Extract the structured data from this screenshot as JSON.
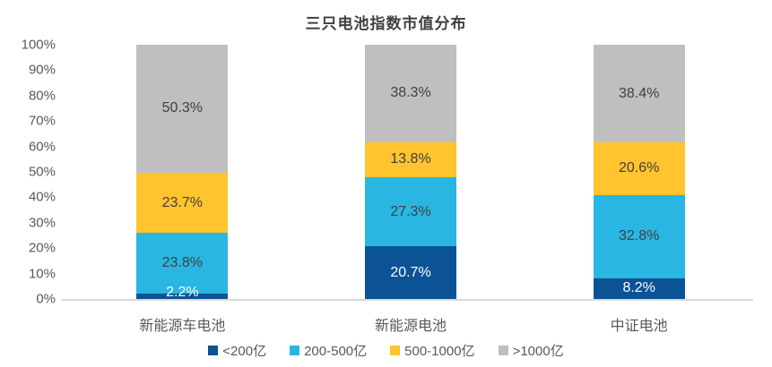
{
  "title": "三只电池指数市值分布",
  "chart_data": {
    "type": "bar",
    "stacked": true,
    "title": "三只电池指数市值分布",
    "categories": [
      "新能源车电池",
      "新能源电池",
      "中证电池"
    ],
    "series": [
      {
        "name": "<200亿",
        "color": "#0B5394",
        "label_color": "#FFFFFF",
        "values": [
          2.2,
          20.7,
          8.2
        ]
      },
      {
        "name": "200-500亿",
        "color": "#29B6E2",
        "label_color": "#404040",
        "values": [
          23.8,
          27.3,
          32.8
        ]
      },
      {
        "name": "500-1000亿",
        "color": "#FFC42E",
        "label_color": "#404040",
        "values": [
          23.7,
          13.8,
          20.6
        ]
      },
      {
        "name": ">1000亿",
        "color": "#BFBFBF",
        "label_color": "#404040",
        "values": [
          50.3,
          38.3,
          38.4
        ]
      }
    ],
    "y_ticks": [
      "100%",
      "90%",
      "80%",
      "70%",
      "60%",
      "50%",
      "40%",
      "30%",
      "20%",
      "10%",
      "0%"
    ],
    "ylim": [
      0,
      100
    ],
    "value_suffix": "%",
    "grid": false,
    "legend_position": "bottom",
    "axis_line_color": "#D9D9D9",
    "tick_text_color": "#595959",
    "category_text_color": "#595959"
  }
}
